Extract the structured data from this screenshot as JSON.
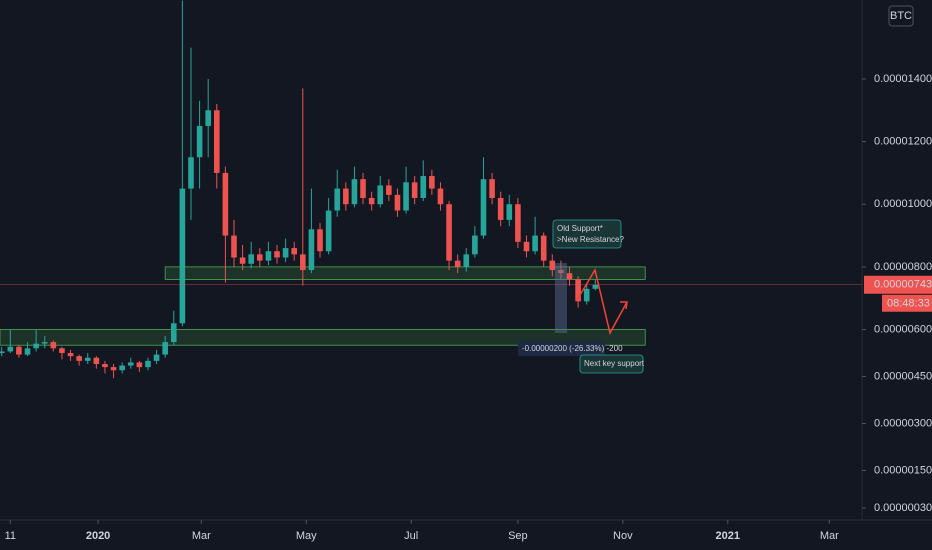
{
  "chart_data": {
    "type": "candlestick",
    "currency": "BTC",
    "x": [
      "2019-11-06",
      "2019-11-11",
      "2019-11-16",
      "2019-11-21",
      "2019-11-26",
      "2019-12-01",
      "2019-12-06",
      "2019-12-11",
      "2019-12-16",
      "2019-12-21",
      "2019-12-26",
      "2019-12-31",
      "2020-01-05",
      "2020-01-10",
      "2020-01-15",
      "2020-01-20",
      "2020-01-25",
      "2020-01-30",
      "2020-02-04",
      "2020-02-09",
      "2020-02-14",
      "2020-02-19",
      "2020-02-24",
      "2020-02-29",
      "2020-03-05",
      "2020-03-10",
      "2020-03-15",
      "2020-03-20",
      "2020-03-25",
      "2020-03-30",
      "2020-04-04",
      "2020-04-09",
      "2020-04-14",
      "2020-04-19",
      "2020-04-24",
      "2020-04-29",
      "2020-05-04",
      "2020-05-09",
      "2020-05-14",
      "2020-05-19",
      "2020-05-24",
      "2020-05-29",
      "2020-06-03",
      "2020-06-08",
      "2020-06-13",
      "2020-06-18",
      "2020-06-23",
      "2020-06-28",
      "2020-07-03",
      "2020-07-08",
      "2020-07-13",
      "2020-07-18",
      "2020-07-23",
      "2020-07-28",
      "2020-08-02",
      "2020-08-07",
      "2020-08-12",
      "2020-08-17",
      "2020-08-22",
      "2020-08-27",
      "2020-09-01",
      "2020-09-06",
      "2020-09-11",
      "2020-09-16",
      "2020-09-21",
      "2020-09-26",
      "2020-10-01",
      "2020-10-06",
      "2020-10-11",
      "2020-10-16"
    ],
    "open": [
      5.25e-06,
      5.3e-06,
      5.45e-06,
      5.2e-06,
      5.4e-06,
      5.55e-06,
      5.6e-06,
      5.4e-06,
      5.25e-06,
      5.15e-06,
      5e-06,
      5.1e-06,
      4.9e-06,
      4.8e-06,
      4.7e-06,
      4.85e-06,
      4.95e-06,
      4.8e-06,
      5e-06,
      5.2e-06,
      5.6e-06,
      6.2e-06,
      1.05e-05,
      1.15e-05,
      1.25e-05,
      1.3e-05,
      1.1e-05,
      9e-06,
      8.3e-06,
      8.1e-06,
      8.4e-06,
      8.2e-06,
      8.5e-06,
      8.3e-06,
      8.6e-06,
      8.4e-06,
      7.9e-06,
      9.2e-06,
      8.5e-06,
      9.8e-06,
      1.05e-05,
      1e-05,
      1.08e-05,
      1.02e-05,
      1e-05,
      1.06e-05,
      1.03e-05,
      9.8e-06,
      1.07e-05,
      1.02e-05,
      1.09e-05,
      1.05e-05,
      1e-05,
      8.2e-06,
      8e-06,
      8.4e-06,
      9e-06,
      1.08e-05,
      1.02e-05,
      9.5e-06,
      1e-05,
      8.8e-06,
      8.5e-06,
      9e-06,
      8.2e-06,
      7.9e-06,
      7.8e-06,
      7.6e-06,
      6.9e-06,
      7.3e-06
    ],
    "high": [
      5.45e-06,
      6e-06,
      5.5e-06,
      5.6e-06,
      6e-06,
      5.8e-06,
      5.65e-06,
      5.45e-06,
      5.35e-06,
      5.2e-06,
      5.25e-06,
      5.15e-06,
      5e-06,
      4.9e-06,
      4.95e-06,
      5.1e-06,
      5e-06,
      5.1e-06,
      5.35e-06,
      5.8e-06,
      6.6e-06,
      1.65e-05,
      1.5e-05,
      1.33e-05,
      1.4e-05,
      1.32e-05,
      1.12e-05,
      9.5e-06,
      8.7e-06,
      8.8e-06,
      8.6e-06,
      8.8e-06,
      8.7e-06,
      8.9e-06,
      8.8e-06,
      1.37e-05,
      1.05e-05,
      9.4e-06,
      1.02e-05,
      1.11e-05,
      1.07e-05,
      1.12e-05,
      1.1e-05,
      1.04e-05,
      1.09e-05,
      1.08e-05,
      1.05e-05,
      1.12e-05,
      1.09e-05,
      1.14e-05,
      1.11e-05,
      1.07e-05,
      1.01e-05,
      8.4e-06,
      8.6e-06,
      9.3e-06,
      1.15e-05,
      1.1e-05,
      1.04e-05,
      1.03e-05,
      1.02e-05,
      9e-06,
      9.6e-06,
      9.1e-06,
      8.4e-06,
      8.2e-06,
      8e-06,
      7.7e-06,
      7.45e-06,
      7.6e-06
    ],
    "low": [
      5.15e-06,
      5.25e-06,
      5.1e-06,
      5.15e-06,
      5.3e-06,
      5.4e-06,
      5.3e-06,
      5.05e-06,
      5e-06,
      4.85e-06,
      4.9e-06,
      4.75e-06,
      4.6e-06,
      4.45e-06,
      4.6e-06,
      4.75e-06,
      4.65e-06,
      4.7e-06,
      4.9e-06,
      5.1e-06,
      5.5e-06,
      6.1e-06,
      9.5e-06,
      1.05e-05,
      1.15e-05,
      1.05e-05,
      7.5e-06,
      8e-06,
      7.9e-06,
      7.95e-06,
      8e-06,
      8.05e-06,
      8.1e-06,
      8.15e-06,
      8.2e-06,
      7.4e-06,
      7.8e-06,
      8.3e-06,
      8.4e-06,
      9.6e-06,
      9.8e-06,
      9.9e-06,
      1e-05,
      9.8e-06,
      9.9e-06,
      1.01e-05,
      9.6e-06,
      9.7e-06,
      1e-05,
      1.01e-05,
      1.03e-05,
      9.8e-06,
      7.9e-06,
      7.8e-06,
      7.85e-06,
      8.3e-06,
      8.9e-06,
      1e-05,
      9.3e-06,
      9.3e-06,
      8.6e-06,
      8.3e-06,
      8.4e-06,
      8e-06,
      7.7e-06,
      7.6e-06,
      7.4e-06,
      6.7e-06,
      6.8e-06,
      7.25e-06
    ],
    "close": [
      5.3e-06,
      5.45e-06,
      5.2e-06,
      5.4e-06,
      5.55e-06,
      5.6e-06,
      5.4e-06,
      5.25e-06,
      5.15e-06,
      5e-06,
      5.1e-06,
      4.9e-06,
      4.8e-06,
      4.7e-06,
      4.85e-06,
      4.95e-06,
      4.8e-06,
      5e-06,
      5.2e-06,
      5.6e-06,
      6.2e-06,
      1.05e-05,
      1.15e-05,
      1.25e-05,
      1.3e-05,
      1.1e-05,
      9e-06,
      8.3e-06,
      8.1e-06,
      8.4e-06,
      8.2e-06,
      8.5e-06,
      8.3e-06,
      8.6e-06,
      8.4e-06,
      7.9e-06,
      9.2e-06,
      8.5e-06,
      9.8e-06,
      1.05e-05,
      1e-05,
      1.08e-05,
      1.02e-05,
      1e-05,
      1.06e-05,
      1.03e-05,
      9.8e-06,
      1.07e-05,
      1.02e-05,
      1.09e-05,
      1.05e-05,
      1e-05,
      8.2e-06,
      8e-06,
      8.4e-06,
      9e-06,
      1.08e-05,
      1.02e-05,
      9.5e-06,
      1e-05,
      8.8e-06,
      8.5e-06,
      9e-06,
      8.2e-06,
      7.9e-06,
      7.8e-06,
      7.6e-06,
      6.9e-06,
      7.3e-06,
      7.43e-06
    ],
    "up_color": "#26a69a",
    "down_color": "#ef5350",
    "xlim": [
      "2019-11-05",
      "2021-03-20"
    ],
    "xticks": [
      {
        "value": "2019-11-11",
        "label": "11"
      },
      {
        "value": "2020-01-01",
        "label": "2020"
      },
      {
        "value": "2020-03-01",
        "label": "Mar"
      },
      {
        "value": "2020-05-01",
        "label": "May"
      },
      {
        "value": "2020-07-01",
        "label": "Jul"
      },
      {
        "value": "2020-09-01",
        "label": "Sep"
      },
      {
        "value": "2020-11-01",
        "label": "Nov"
      },
      {
        "value": "2021-01-01",
        "label": "2021"
      },
      {
        "value": "2021-03-01",
        "label": "Mar"
      }
    ],
    "ylim": [
      -8e-08,
      1.652e-05
    ],
    "yticks": [
      {
        "value": 3e-07,
        "label": "0.00000030"
      },
      {
        "value": 1.5e-06,
        "label": "0.00000150"
      },
      {
        "value": 3e-06,
        "label": "0.00000300"
      },
      {
        "value": 4.5e-06,
        "label": "0.00000450"
      },
      {
        "value": 6e-06,
        "label": "0.00000600"
      },
      {
        "value": 8e-06,
        "label": "0.00000800"
      },
      {
        "value": 1e-05,
        "label": "0.00001000"
      },
      {
        "value": 1.2e-05,
        "label": "0.00001200"
      },
      {
        "value": 1.4e-05,
        "label": "0.00001400"
      }
    ],
    "grid": false,
    "current_price": {
      "value": 7.43e-06,
      "label": "0.00000743"
    },
    "countdown": "08:48:33",
    "zones": [
      {
        "low": 7.6e-06,
        "high": 8e-06,
        "start": "2020-02-09",
        "end": "2020-11-14"
      },
      {
        "low": 5.5e-06,
        "high": 6e-06,
        "start": "2019-11-05",
        "end": "2020-11-14"
      }
    ],
    "annotations": [
      "Old Support*",
      ">New Resistance?",
      "Next key support"
    ],
    "measure": "-0.00000200 (-26.33%) -200"
  }
}
